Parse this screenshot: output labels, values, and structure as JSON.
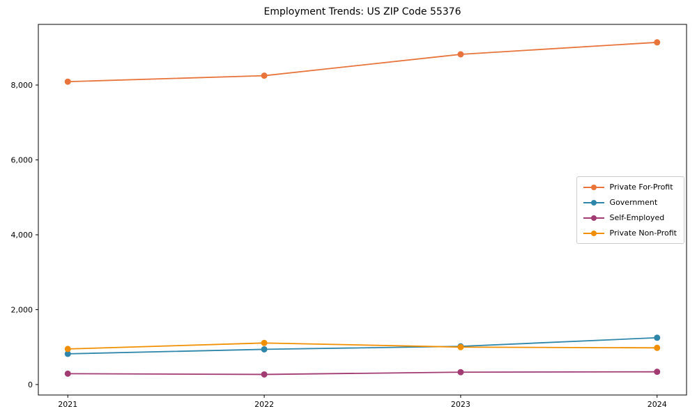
{
  "chart_data": {
    "type": "line",
    "title": "Employment Trends: US ZIP Code 55376",
    "xlabel": "",
    "ylabel": "",
    "x": [
      2021,
      2022,
      2023,
      2024
    ],
    "x_tick_labels": [
      "2021",
      "2022",
      "2023",
      "2024"
    ],
    "y_ticks": [
      0,
      2000,
      4000,
      6000,
      8000
    ],
    "y_tick_labels": [
      "0",
      "2,000",
      "4,000",
      "6,000",
      "8,000"
    ],
    "xlim": [
      2020.85,
      2024.15
    ],
    "ylim": [
      -280,
      9620
    ],
    "grid": false,
    "legend_position": "center-right",
    "series": [
      {
        "name": "Private For-Profit",
        "color": "#E8743B",
        "values": [
          8090,
          8250,
          8820,
          9140
        ]
      },
      {
        "name": "Government",
        "color": "#2E86AB",
        "values": [
          820,
          940,
          1020,
          1250
        ]
      },
      {
        "name": "Self-Employed",
        "color": "#A23B72",
        "values": [
          290,
          270,
          330,
          340
        ]
      },
      {
        "name": "Private Non-Profit",
        "color": "#F18F01",
        "values": [
          950,
          1110,
          1000,
          980
        ]
      }
    ]
  }
}
